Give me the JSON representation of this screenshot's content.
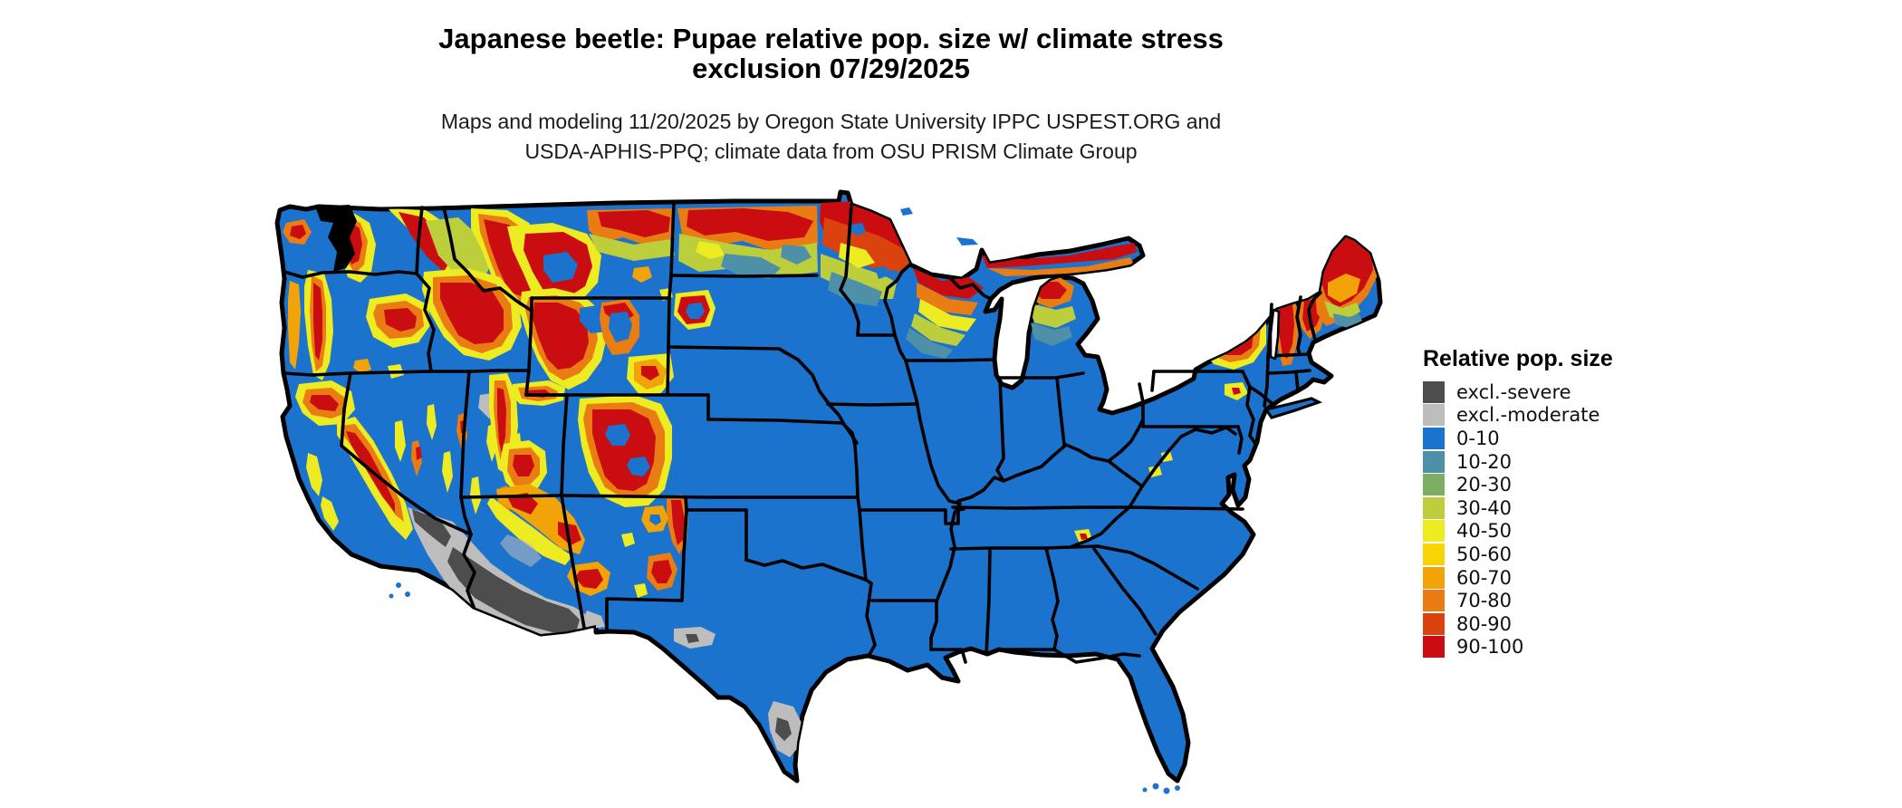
{
  "header": {
    "title_line1": "Japanese beetle: Pupae relative pop. size w/ climate stress",
    "title_line2": "exclusion 07/29/2025",
    "subtitle_line1": "Maps and modeling 11/20/2025 by Oregon State University IPPC USPEST.ORG and",
    "subtitle_line2": "USDA-APHIS-PPQ; climate data from OSU PRISM Climate Group"
  },
  "legend": {
    "title": "Relative pop. size",
    "items": [
      {
        "label": "excl.-severe",
        "color": "#4D4D4D"
      },
      {
        "label": "excl.-moderate",
        "color": "#BDBDBD"
      },
      {
        "label": "0-10",
        "color": "#1C73CE"
      },
      {
        "label": "10-20",
        "color": "#4E90A8"
      },
      {
        "label": "20-30",
        "color": "#7DAE63"
      },
      {
        "label": "30-40",
        "color": "#BCCE3B"
      },
      {
        "label": "40-50",
        "color": "#EDEB21"
      },
      {
        "label": "50-60",
        "color": "#F8D405"
      },
      {
        "label": "60-70",
        "color": "#F1A307"
      },
      {
        "label": "70-80",
        "color": "#E97C12"
      },
      {
        "label": "80-90",
        "color": "#DA430E"
      },
      {
        "label": "90-100",
        "color": "#C90D10"
      }
    ]
  },
  "chart_data": {
    "type": "heatmap",
    "title": "Japanese beetle: Pupae relative pop. size w/ climate stress exclusion 07/29/2025",
    "region": "Contiguous United States with state boundaries",
    "scale_units": "relative population size (0-100) plus climate-stress exclusion classes",
    "legend_position": "right",
    "visual_summary": {
      "base_class": "0-10 (blue) over most of the eastern, central and southern US",
      "high_value_areas": [
        "Cascades and Olympic ranges (WA, OR)",
        "Sierra Nevada and Klamath ranges (CA)",
        "Rocky Mountains: Idaho, western Montana, Wyoming (Yellowstone/Bighorn), Utah ranges, Colorado Rockies, northern New Mexico ranges",
        "Northern Montana and northern North Dakota along Canadian border",
        "Northern Minnesota, northern Wisconsin, Michigan Upper Peninsula",
        "Adirondacks (NY), Green Mountains (VT), White Mountains (NH), most of Maine",
        "Black Hills (SD)"
      ],
      "excluded_areas": [
        "Sonoran desert: southwest Arizona and southeast California (excl.-severe dark gray with excl.-moderate fringe)",
        "South Texas along Rio Grande (excl.-moderate with small excl.-severe patch)",
        "West Texas and Great Salt Lake desert (small excl.-moderate patches)"
      ]
    }
  }
}
